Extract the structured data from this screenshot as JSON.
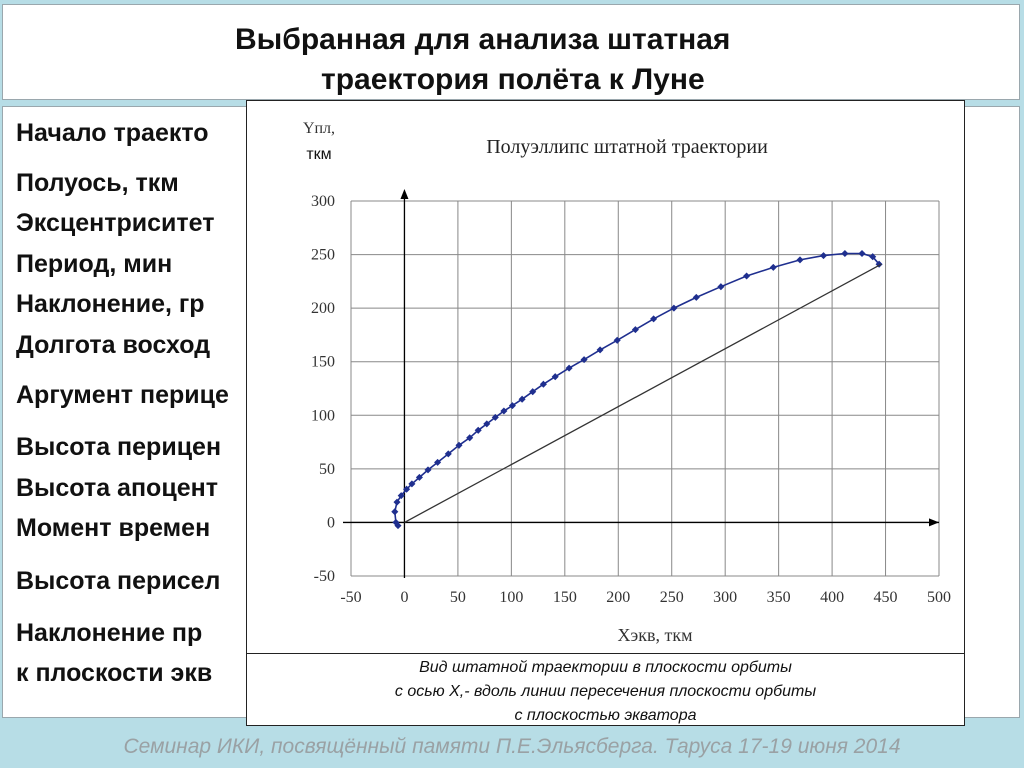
{
  "slide": {
    "title_line1": "Выбранная для анализа штатная",
    "title_line2": "траектория полёта к Луне",
    "params": [
      "Начало траекто",
      "Полуось, ткм",
      "Эксцентриситет",
      "Период, мин",
      "Наклонение, гр",
      "Долгота восход",
      "Аргумент перицe",
      "Высота перицен",
      "Высота апоцент",
      "Момент времен",
      "Высота перисел",
      "Наклонение пр",
      " к плоскости экв"
    ],
    "caption": [
      "Вид штатной траектории в плоскости орбиты",
      "с осью X,- вдоль линии пересечения плоскости орбиты",
      "с плоскостью экватора"
    ],
    "footer": "Семинар ИКИ, посвящённый памяти П.Е.Эльясберга.   Таруса 17-19 июня 2014"
  },
  "chart_data": {
    "type": "line",
    "title": "Полуэллипс штатной траектории",
    "ylabel_line1": "Yпл,",
    "ylabel_line2": "ткм",
    "xlabel": "Xэкв, ткм",
    "xlim": [
      -50,
      500
    ],
    "ylim": [
      -50,
      300
    ],
    "x_ticks": [
      -50,
      0,
      50,
      100,
      150,
      200,
      250,
      300,
      350,
      400,
      450,
      500
    ],
    "y_ticks": [
      -50,
      0,
      50,
      100,
      150,
      200,
      250,
      300
    ],
    "grid": true,
    "series": [
      {
        "color": "#1f2f8f",
        "x": [
          -6,
          -8,
          -9,
          -7,
          -3,
          2,
          7,
          14,
          22,
          31,
          41,
          51,
          61,
          69,
          77,
          85,
          93,
          101,
          110,
          120,
          130,
          141,
          154,
          168,
          183,
          199,
          216,
          233,
          252,
          273,
          296,
          320,
          345,
          370,
          392,
          412,
          428,
          438,
          444
        ],
        "y": [
          -3,
          0,
          10,
          19,
          25,
          31,
          36,
          42,
          49,
          56,
          64,
          72,
          79,
          86,
          92,
          98,
          104,
          109,
          115,
          122,
          129,
          136,
          144,
          152,
          161,
          170,
          180,
          190,
          200,
          210,
          220,
          230,
          238,
          245,
          249,
          251,
          251,
          248,
          241
        ]
      },
      {
        "color": "#333333",
        "x": [
          0,
          446
        ],
        "y": [
          0,
          241
        ]
      }
    ]
  }
}
